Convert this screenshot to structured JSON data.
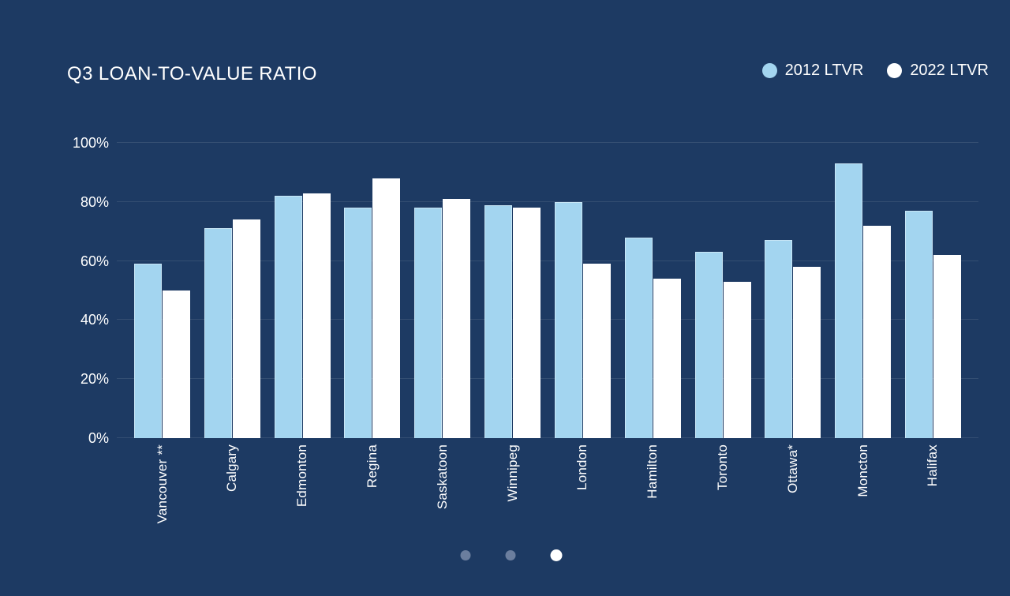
{
  "title": "Q3 LOAN-TO-VALUE RATIO",
  "legend": {
    "items": [
      {
        "label": "2012 LTVR",
        "color": "#a3d5f0"
      },
      {
        "label": "2022 LTVR",
        "color": "#ffffff"
      }
    ]
  },
  "chart_data": {
    "type": "bar",
    "title": "Q3 LOAN-TO-VALUE RATIO",
    "categories": [
      "Vancouver **",
      "Calgary",
      "Edmonton",
      "Regina",
      "Saskatoon",
      "Winnipeg",
      "London",
      "Hamilton",
      "Toronto",
      "Ottawa*",
      "Moncton",
      "Halifax"
    ],
    "series": [
      {
        "name": "2012 LTVR",
        "color": "#a3d5f0",
        "values": [
          59,
          71,
          82,
          78,
          78,
          79,
          80,
          68,
          63,
          67,
          93,
          77
        ]
      },
      {
        "name": "2022 LTVR",
        "color": "#ffffff",
        "values": [
          50,
          74,
          83,
          88,
          81,
          78,
          59,
          54,
          53,
          58,
          72,
          62
        ]
      }
    ],
    "unit": "%",
    "ylim": [
      0,
      100
    ],
    "yticks": [
      {
        "label": "0%",
        "value": 0
      },
      {
        "label": "20%",
        "value": 20
      },
      {
        "label": "40%",
        "value": 40
      },
      {
        "label": "60%",
        "value": 60
      },
      {
        "label": "80%",
        "value": 80
      },
      {
        "label": "100%",
        "value": 100
      }
    ],
    "grid": true,
    "legend_position": "top-right",
    "x_label_rotation": -90
  },
  "carousel": {
    "dots": [
      {
        "name": "slide-1",
        "active": false
      },
      {
        "name": "slide-2",
        "active": false
      },
      {
        "name": "slide-3",
        "active": true
      }
    ]
  },
  "colors": {
    "background": "#1d3a63",
    "bar_2012": "#a3d5f0",
    "bar_2022": "#ffffff",
    "gridline": "rgba(255,255,255,0.10)",
    "text": "#ffffff",
    "dot_inactive": "#6b7e9e",
    "dot_active": "#ffffff"
  }
}
